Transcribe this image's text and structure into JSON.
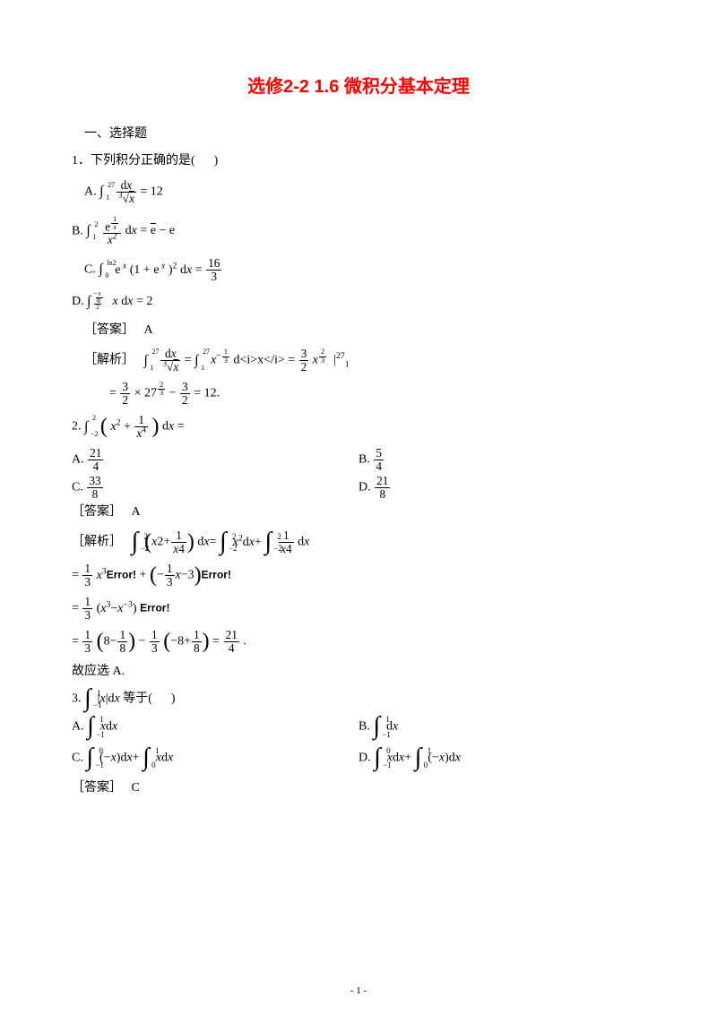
{
  "colors": {
    "title": "#ff0000",
    "text": "#000000",
    "background": "#ffffff"
  },
  "fonts": {
    "title_family": "SimHei",
    "body_cn": "SimSun",
    "body_math": "Times New Roman",
    "title_size_pt": 15,
    "body_size_pt": 10.5
  },
  "title": "选修2-2    1.6 微积分基本定理",
  "sec1_header": "一、选择题",
  "q1": {
    "stem_prefix": "1．下列积分正确的是(",
    "stem_suffix": ")",
    "optA": {
      "label": "A.",
      "lhs_upper": "27",
      "lhs_lower": "1",
      "num": "d<i>x</i>",
      "den_presup": "3",
      "den_sqrt": "<i>x</i>",
      "eq": "= 12"
    },
    "optB": {
      "label": "B.",
      "upper": "2",
      "lower": "1",
      "num_e": "e",
      "num_supfrac_num": "1",
      "num_supfrac_den": "<i>x</i>",
      "den": "<i>x</i><sup>2</sup>",
      "tail": "d<i>x</i> = <span class=\"sqrt\">e</span> − e"
    },
    "optC": {
      "label": "C.",
      "upper": "ln2",
      "lower": "0",
      "body": "e<sup>&nbsp;<i>x</i></sup> (1 + e<sup>&nbsp;<i>x</i></sup> )<sup>2</sup> d<i>x</i> =",
      "rhs_num": "16",
      "rhs_den": "3"
    },
    "optD": {
      "label": "D.",
      "upper_num": "π",
      "upper_den": "2",
      "lower_num": "π",
      "lower_den": "2",
      "body": "<i>x</i> d<i>x</i> = 2"
    },
    "answer_label": "［答案］",
    "answer_value": "A",
    "analysis_label": "［解析］",
    "analysis1_upper": "27",
    "analysis1_lower": "1",
    "analysis1_num": "d<i>x</i>",
    "analysis1_den_presup": "3",
    "analysis1_den_sqrt": "<i>x</i>",
    "analysis1_eq": "=",
    "analysis1b_upper": "27",
    "analysis1b_lower": "1",
    "analysis1b_body": "<i>x</i>",
    "analysis1b_exp_num": "1",
    "analysis1b_exp_den": "3",
    "analysis1b_tail": "d<i>x</i> =",
    "analysis1c_num": "3",
    "analysis1c_den": "2",
    "analysis1c_body": "<i>x</i>",
    "analysis1c_exp_num": "2",
    "analysis1c_exp_den": "3",
    "analysis1c_bar_upper": "27",
    "analysis1c_bar_lower": "1",
    "analysis2_eq1": "=",
    "analysis2_num1": "3",
    "analysis2_den1": "2",
    "analysis2_mul": "× 27",
    "analysis2_exp_num": "2",
    "analysis2_exp_den": "3",
    "analysis2_minus": "−",
    "analysis2_num2": "3",
    "analysis2_den2": "2",
    "analysis2_tail": "= 12."
  },
  "q2": {
    "stem_prefix": "2. ",
    "upper": "2",
    "lower": "−2",
    "in_num": "1",
    "in_den": "<i>x</i><sup>4</sup>",
    "in_x2": "<i>x</i><sup>2</sup> +",
    "tail": "d<i>x</i> =",
    "optA": {
      "label": "A.",
      "num": "21",
      "den": "4"
    },
    "optB": {
      "label": "B.",
      "num": "5",
      "den": "4"
    },
    "optC": {
      "label": "C.",
      "num": "33",
      "den": "8"
    },
    "optD": {
      "label": "D.",
      "num": "21",
      "den": "8"
    },
    "answer_label": "［答案］",
    "answer_value": "A",
    "analysis_label": "［解析］",
    "a1_upper": "2",
    "a1_lower": "−2",
    "a1_body": "<i>x</i>2+",
    "a1_num": "1",
    "a1_den": "<i>x</i>4",
    "a1_tail": "d<i>x</i>=",
    "a1b_upper": "2",
    "a1b_lower": "−2",
    "a1b_body": "<i>x</i><sup>2</sup>d<i>x</i>+",
    "a1c_upper": "2",
    "a1c_lower": "−2",
    "a1c_num": "1",
    "a1c_den": "<i>x</i>4",
    "a1c_tail": "d<i>x</i>",
    "a2_eq": "=",
    "a2_num": "1",
    "a2_den": "3",
    "a2_body": "<i>x</i><sup>3</sup>",
    "a2_err": "Error!",
    "a2_plus": "+",
    "a2b_num": "1",
    "a2b_den": "3",
    "a2b_x": "<i>x</i>−3",
    "a2b_minus": "−",
    "a3_eq": "=",
    "a3_num": "1",
    "a3_den": "3",
    "a3_body": "(<i>x</i><sup>3</sup>−<i>x</i><sup>−3</sup>)",
    "a3_err": "Error!",
    "a4_eq": "=",
    "a4_num1": "1",
    "a4_den1": "3",
    "a4_p1": "8−",
    "a4_p1num": "1",
    "a4_p1den": "8",
    "a4_minus": "−",
    "a4_num2": "1",
    "a4_den2": "3",
    "a4_p2": "−8+",
    "a4_p2num": "1",
    "a4_p2den": "8",
    "a4_eq2": "=",
    "a4_rnum": "21",
    "a4_rden": "4",
    "a4_dot": ".",
    "final": "故应选 A."
  },
  "q3": {
    "stem_num": "3.",
    "upper": "1",
    "lower": "−1",
    "body": "|<i>x</i>|d<i>x</i>",
    "tail": "等于(",
    "suffix": ")",
    "optA": {
      "label": "A.",
      "upper": "1",
      "lower": "−1",
      "body": "<i>x</i>d<i>x</i>"
    },
    "optB": {
      "label": "B.",
      "upper": "1",
      "lower": "−1",
      "body": "d<i>x</i>"
    },
    "optC": {
      "label": "C.",
      "u1": "0",
      "l1": "−1",
      "b1": "(−<i>x</i>)d<i>x</i>+",
      "u2": "1",
      "l2": "0",
      "b2": "<i>x</i>d<i>x</i>"
    },
    "optD": {
      "label": "D.",
      "u1": "0",
      "l1": "−1",
      "b1": "<i>x</i>d<i>x</i>+",
      "u2": "1",
      "l2": "0",
      "b2": "(−<i>x</i>)d<i>x</i>"
    },
    "answer_label": "［答案］",
    "answer_value": "C"
  },
  "footer": "- 1 -"
}
